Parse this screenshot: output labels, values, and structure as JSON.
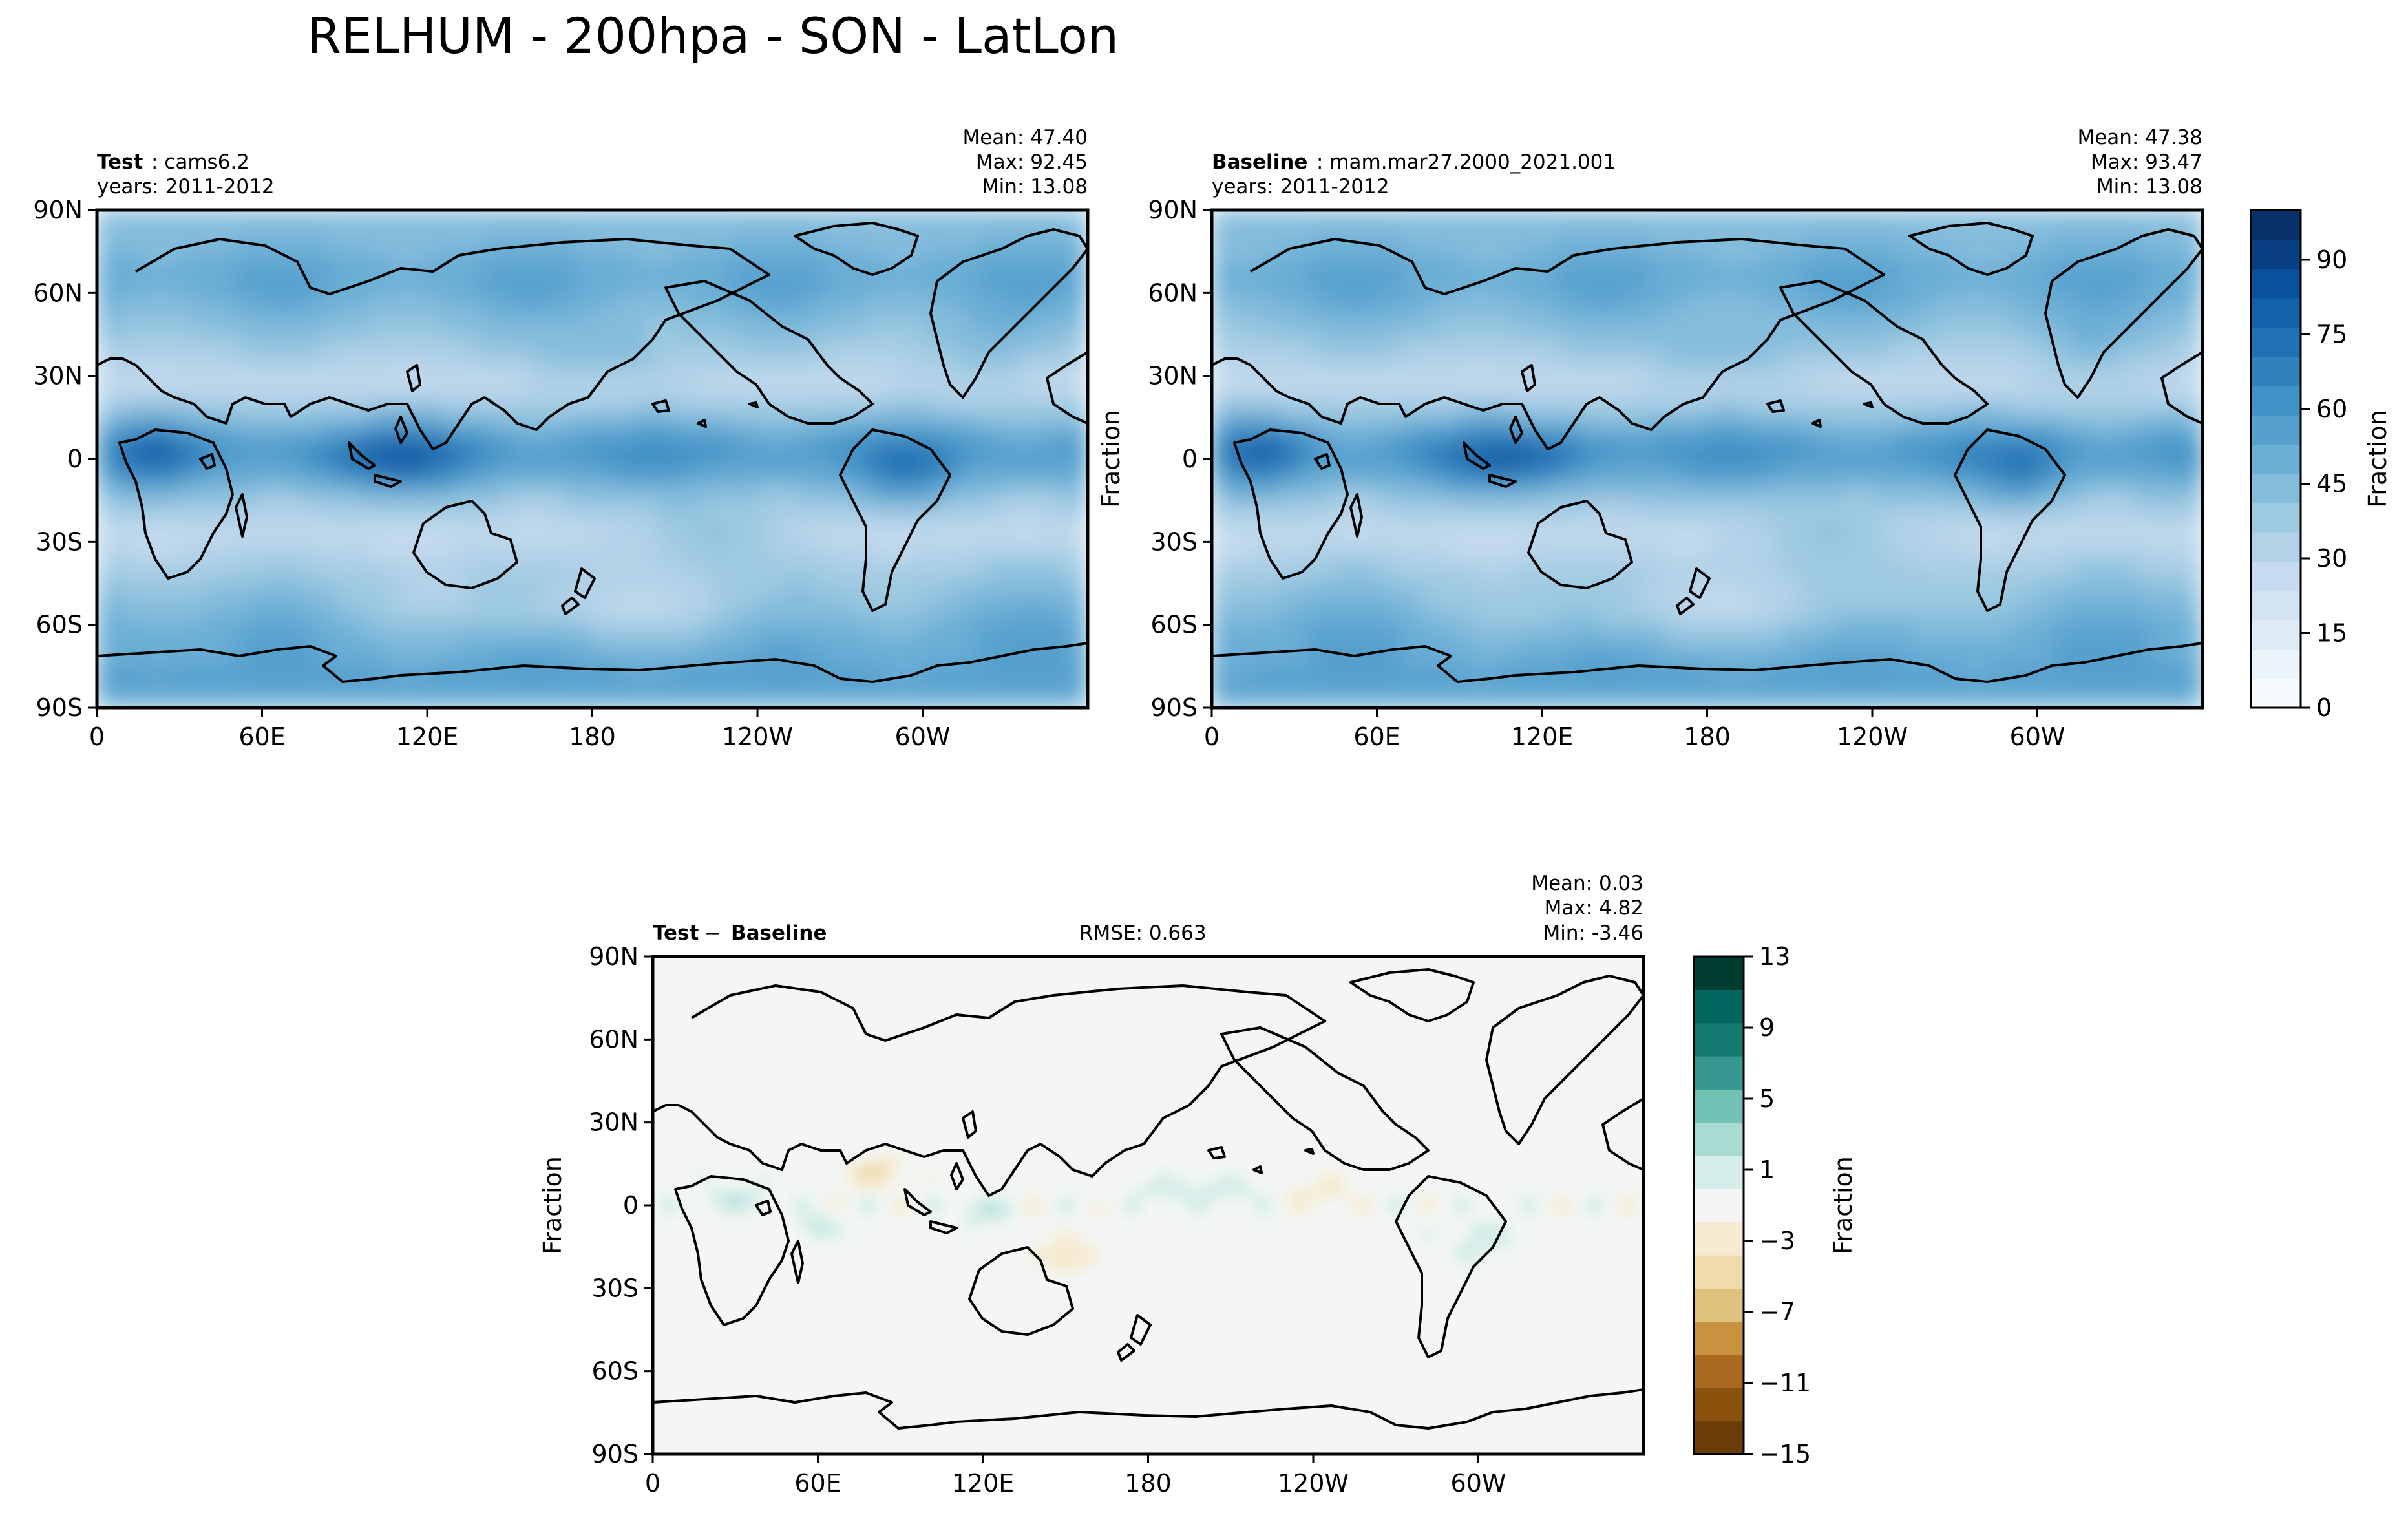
{
  "title": "RELHUM - 200hpa - SON - LatLon",
  "colors": {
    "blues": [
      "#f7fbff",
      "#ebf3fb",
      "#deebf7",
      "#d2e3f3",
      "#c6dbef",
      "#b2d2e8",
      "#9ecae1",
      "#84bcdb",
      "#6baed6",
      "#57a0ce",
      "#4292c6",
      "#3181bd",
      "#2171b5",
      "#1361a9",
      "#08519c",
      "#083f80",
      "#08306b"
    ],
    "diff": [
      "#6a3d08",
      "#8a520d",
      "#a96a20",
      "#c8923e",
      "#dfc27d",
      "#efdbab",
      "#f6ebd2",
      "#f5f5f5",
      "#d6eee9",
      "#a8dcd2",
      "#71c2b4",
      "#35978f",
      "#137a6f",
      "#01665e",
      "#003c30"
    ]
  },
  "chart_data": [
    {
      "type": "heatmap",
      "panel": "test",
      "label_bold": "Test",
      "label_rest": ": cams6.2",
      "years": "years: 2011-2012",
      "stats": [
        "Mean: 47.40",
        "Max: 92.45",
        "Min: 13.08"
      ],
      "ylabel": "",
      "x_ticks": [
        "0",
        "60E",
        "120E",
        "180",
        "120W",
        "60W"
      ],
      "y_ticks": [
        "90N",
        "60N",
        "30N",
        "0",
        "30S",
        "60S",
        "90S"
      ],
      "xlim": [
        0,
        360
      ],
      "ylim": [
        -90,
        90
      ],
      "variant": 0
    },
    {
      "type": "heatmap",
      "panel": "baseline",
      "label_bold": "Baseline",
      "label_rest": ": mam.mar27.2000_2021.001",
      "years": "years: 2011-2012",
      "stats": [
        "Mean: 47.38",
        "Max: 93.47",
        "Min: 13.08"
      ],
      "ylabel": "Fraction",
      "x_ticks": [
        "0",
        "60E",
        "120E",
        "180",
        "120W",
        "60W"
      ],
      "y_ticks": [
        "90N",
        "60N",
        "30N",
        "0",
        "30S",
        "60S",
        "90S"
      ],
      "xlim": [
        0,
        360
      ],
      "ylim": [
        -90,
        90
      ],
      "variant": 1
    },
    {
      "type": "heatmap",
      "panel": "diff",
      "label_bold": "Test",
      "label_bold2": "Baseline",
      "label_minus": " − ",
      "rmse": "RMSE: 0.663",
      "stats": [
        "Mean:  0.03",
        "Max:  4.82",
        "Min: -3.46"
      ],
      "ylabel": "Fraction",
      "x_ticks": [
        "0",
        "60E",
        "120E",
        "180",
        "120W",
        "60W"
      ],
      "y_ticks": [
        "90N",
        "60N",
        "30N",
        "0",
        "30S",
        "60S",
        "90S"
      ],
      "xlim": [
        0,
        360
      ],
      "ylim": [
        -90,
        90
      ]
    }
  ],
  "colorbars": {
    "main": {
      "label": "Fraction",
      "range": [
        0,
        100
      ],
      "ticks": [
        "0",
        "15",
        "30",
        "45",
        "60",
        "75",
        "90"
      ],
      "tick_values": [
        0,
        15,
        30,
        45,
        60,
        75,
        90
      ]
    },
    "diff": {
      "label": "Fraction",
      "range": [
        -15,
        13
      ],
      "ticks": [
        "13",
        "9",
        "5",
        "1",
        "−3",
        "−7",
        "−11",
        "−15"
      ],
      "tick_values": [
        13,
        9,
        5,
        1,
        -3,
        -7,
        -11,
        -15
      ]
    }
  }
}
